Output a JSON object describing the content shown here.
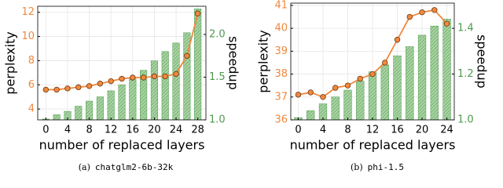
{
  "chart_data": [
    {
      "type": "bar-line",
      "caption_tag": "(a)",
      "caption": "chatglm2-6b-32k",
      "xlabel": "number of replaced layers",
      "ylabel": "perplexity",
      "y2label": "speedup",
      "x": [
        0,
        2,
        4,
        6,
        8,
        10,
        12,
        14,
        16,
        18,
        20,
        22,
        24,
        26,
        28
      ],
      "xlim": [
        -1.5,
        29.5
      ],
      "xticks": [
        0,
        4,
        8,
        12,
        16,
        20,
        24,
        28
      ],
      "ylim": [
        3.1,
        12.5
      ],
      "yticks": [
        4,
        6,
        8,
        10,
        12
      ],
      "y2lim": [
        1.0,
        2.33
      ],
      "y2ticks": [
        {
          "value": 1.0,
          "label": "1.0"
        },
        1.5,
        {
          "value": 2.0,
          "label": "2.0"
        }
      ],
      "grid": true,
      "series": [
        {
          "color": "#4e9a4e",
          "axis": "y2",
          "values": [
            1.01,
            1.06,
            1.1,
            1.16,
            1.22,
            1.27,
            1.34,
            1.41,
            1.48,
            1.58,
            1.69,
            1.8,
            1.9,
            2.02,
            2.3
          ]
        },
        {
          "color": "#f0883e",
          "values": [
            5.6,
            5.6,
            5.7,
            5.8,
            5.9,
            6.1,
            6.3,
            6.5,
            6.6,
            6.6,
            6.7,
            6.7,
            6.9,
            8.4,
            11.9
          ]
        }
      ]
    },
    {
      "type": "bar-line",
      "caption_tag": "(b)",
      "caption": "phi-1.5",
      "xlabel": "number of replaced layers",
      "ylabel": "perplexity",
      "y2label": "speedup",
      "x": [
        0,
        2,
        4,
        6,
        8,
        10,
        12,
        14,
        16,
        18,
        20,
        22,
        24
      ],
      "xlim": [
        -1.2,
        25.2
      ],
      "xticks": [
        0,
        4,
        8,
        12,
        16,
        20,
        24
      ],
      "ylim": [
        36,
        41.1
      ],
      "yticks": [
        36,
        37,
        38,
        39,
        40,
        41
      ],
      "y2lim": [
        1.0,
        1.51
      ],
      "y2ticks": [
        {
          "value": 1.0,
          "label": "1.0"
        },
        1.2,
        1.4
      ],
      "grid": true,
      "series": [
        {
          "color": "#4e9a4e",
          "axis": "y2",
          "values": [
            1.01,
            1.04,
            1.07,
            1.1,
            1.13,
            1.17,
            1.21,
            1.24,
            1.28,
            1.32,
            1.37,
            1.41,
            1.44
          ]
        },
        {
          "color": "#f0883e",
          "values": [
            37.1,
            37.2,
            37.0,
            37.4,
            37.5,
            37.8,
            38.0,
            38.5,
            39.5,
            40.5,
            40.7,
            40.8,
            40.2
          ]
        }
      ]
    }
  ]
}
